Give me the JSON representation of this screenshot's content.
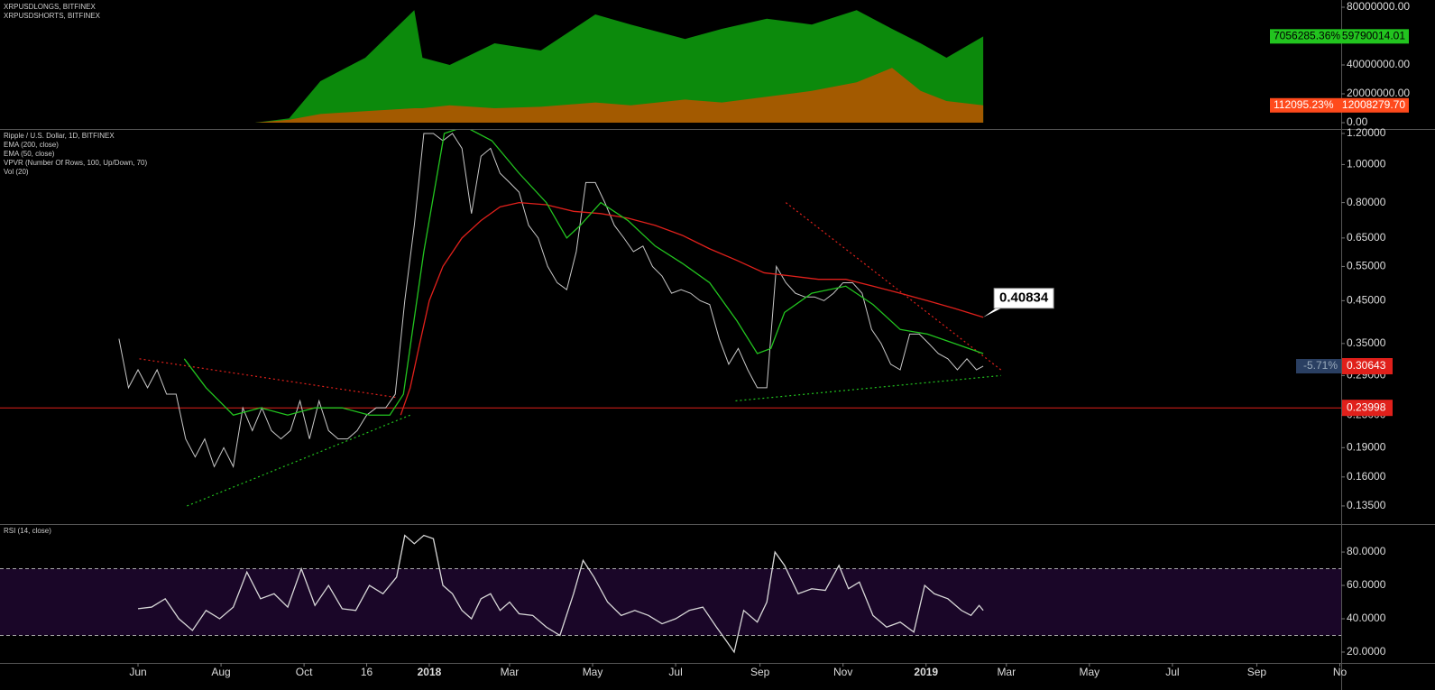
{
  "chart_data": [
    {
      "type": "area",
      "x": [
        86,
        111,
        134,
        167,
        203,
        209,
        229,
        262,
        296,
        336,
        362,
        402,
        429,
        462,
        495,
        528,
        554,
        575,
        594,
        621
      ],
      "series": [
        {
          "name": "XRPUSDLONGS, BITFINEX",
          "color": "#0c8a0c",
          "badge_color": "#22c41f",
          "values": [
            0,
            3000000,
            28750000,
            45000000,
            78000000,
            45000000,
            40000000,
            55000000,
            50000000,
            75000000,
            68000000,
            58000000,
            65000000,
            72000000,
            68000000,
            78000000,
            65000000,
            55000000,
            45000000,
            59790014.01
          ],
          "last_label": "59790014.01",
          "change_label": "7056285.36%"
        },
        {
          "name": "XRPUSDSHORTS, BITFINEX",
          "color": "#a35a00",
          "badge_color": "#ff4a1c",
          "values": [
            0,
            2000000,
            6000000,
            8000000,
            10000000,
            10000000,
            12000000,
            10000000,
            11000000,
            14000000,
            12000000,
            16000000,
            14000000,
            18000000,
            22000000,
            28000000,
            38000000,
            22000000,
            15000000,
            12008279.7
          ],
          "last_label": "12008279.70",
          "change_label": "112095.23%"
        }
      ],
      "ylim": [
        -4375000,
        85000000
      ],
      "yticks": [
        {
          "value": 0,
          "label": "0.00"
        },
        {
          "value": 20000000,
          "label": "20000000.00"
        },
        {
          "value": 40000000,
          "label": "40000000.00"
        },
        {
          "value": 80000000,
          "label": "80000000.00"
        }
      ]
    },
    {
      "type": "line",
      "log_scale": true,
      "series": [
        {
          "name": "Ripple / U.S. Dollar, 1D, BITFINEX",
          "color": "#c8c8c8",
          "badge_color": "#e0201b",
          "change_label": "-5.71%",
          "x": [
            -14,
            -7,
            0,
            7,
            14,
            21,
            28,
            35,
            42,
            49,
            56,
            63,
            70,
            77,
            84,
            91,
            98,
            105,
            112,
            119,
            126,
            133,
            140,
            147,
            154,
            161,
            168,
            175,
            182,
            189,
            196,
            203,
            210,
            217,
            224,
            231,
            238,
            245,
            252,
            259,
            266,
            273,
            280,
            287,
            294,
            301,
            308,
            315,
            322,
            329,
            336,
            343,
            350,
            357,
            364,
            371,
            378,
            385,
            392,
            399,
            406,
            413,
            420,
            427,
            434,
            441,
            448,
            455,
            462,
            469,
            476,
            483,
            490,
            497,
            504,
            511,
            518,
            525,
            532,
            539,
            546,
            553,
            560,
            567,
            574,
            581,
            588,
            595,
            602,
            609,
            616,
            621
          ],
          "values": [
            0.36,
            0.27,
            0.3,
            0.27,
            0.3,
            0.26,
            0.26,
            0.2,
            0.18,
            0.2,
            0.17,
            0.19,
            0.17,
            0.24,
            0.21,
            0.24,
            0.21,
            0.2,
            0.21,
            0.25,
            0.2,
            0.25,
            0.21,
            0.2,
            0.2,
            0.21,
            0.23,
            0.24,
            0.24,
            0.26,
            0.45,
            0.7,
            1.2,
            1.2,
            1.15,
            1.2,
            1.1,
            0.75,
            1.05,
            1.1,
            0.95,
            0.9,
            0.85,
            0.7,
            0.65,
            0.55,
            0.5,
            0.48,
            0.6,
            0.9,
            0.9,
            0.8,
            0.7,
            0.65,
            0.6,
            0.62,
            0.55,
            0.52,
            0.47,
            0.48,
            0.47,
            0.45,
            0.44,
            0.36,
            0.31,
            0.34,
            0.3,
            0.27,
            0.27,
            0.55,
            0.5,
            0.47,
            0.46,
            0.46,
            0.45,
            0.47,
            0.5,
            0.5,
            0.47,
            0.38,
            0.35,
            0.31,
            0.3,
            0.37,
            0.37,
            0.35,
            0.33,
            0.32,
            0.3,
            0.32,
            0.3,
            0.30643
          ]
        },
        {
          "name": "EMA (200, close)",
          "color": "#e0201b",
          "callout": true,
          "x": [
            193,
            200,
            207,
            214,
            224,
            238,
            252,
            266,
            280,
            300,
            320,
            340,
            360,
            380,
            400,
            420,
            440,
            460,
            480,
            500,
            520,
            540,
            560,
            580,
            600,
            621
          ],
          "values": [
            0.23,
            0.27,
            0.35,
            0.45,
            0.55,
            0.65,
            0.72,
            0.78,
            0.8,
            0.79,
            0.76,
            0.75,
            0.73,
            0.7,
            0.66,
            0.61,
            0.57,
            0.53,
            0.52,
            0.51,
            0.51,
            0.49,
            0.47,
            0.45,
            0.43,
            0.40834
          ]
        },
        {
          "name": "EMA (50, close)",
          "color": "#22c41f",
          "x": [
            34,
            50,
            70,
            90,
            110,
            130,
            150,
            170,
            185,
            195,
            210,
            225,
            240,
            260,
            280,
            300,
            315,
            325,
            340,
            360,
            380,
            400,
            420,
            440,
            455,
            465,
            475,
            495,
            520,
            540,
            560,
            580,
            600,
            621
          ],
          "values": [
            0.32,
            0.27,
            0.23,
            0.24,
            0.23,
            0.24,
            0.24,
            0.23,
            0.23,
            0.26,
            0.6,
            1.2,
            1.25,
            1.15,
            0.95,
            0.8,
            0.65,
            0.7,
            0.8,
            0.72,
            0.62,
            0.56,
            0.5,
            0.4,
            0.33,
            0.34,
            0.42,
            0.47,
            0.49,
            0.44,
            0.38,
            0.37,
            0.35,
            0.33
          ]
        }
      ],
      "indicators": [
        "VPVR (Number Of Rows, 100, Up/Down, 70)",
        "Vol (20)"
      ],
      "hline": {
        "value": 0.23998,
        "color": "#e0201b"
      },
      "trendlines": [
        {
          "x": [
            1,
            190
          ],
          "y": [
            0.32,
            0.255
          ],
          "color": "#e0201b"
        },
        {
          "x": [
            36,
            200
          ],
          "y": [
            0.135,
            0.23
          ],
          "color": "#22c41f"
        },
        {
          "x": [
            476,
            634
          ],
          "y": [
            0.8,
            0.3
          ],
          "color": "#e0201b"
        },
        {
          "x": [
            439,
            634
          ],
          "y": [
            0.25,
            0.29
          ],
          "color": "#22c41f"
        }
      ],
      "ylim": [
        0.1214,
        1.232
      ],
      "yticks": [
        {
          "value": 1.2,
          "label": "1.20000"
        },
        {
          "value": 1,
          "label": "1.00000"
        },
        {
          "value": 0.8,
          "label": "0.80000"
        },
        {
          "value": 0.65,
          "label": "0.65000"
        },
        {
          "value": 0.55,
          "label": "0.55000"
        },
        {
          "value": 0.45,
          "label": "0.45000"
        },
        {
          "value": 0.35,
          "label": "0.35000"
        },
        {
          "value": 0.29,
          "label": "0.29000"
        },
        {
          "value": 0.23,
          "label": "0.23000"
        },
        {
          "value": 0.19,
          "label": "0.19000"
        },
        {
          "value": 0.16,
          "label": "0.16000"
        },
        {
          "value": 0.135,
          "label": "0.13500"
        }
      ]
    },
    {
      "type": "line",
      "title": "RSI (14, close)",
      "band": [
        30,
        70
      ],
      "series": [
        {
          "color": "#d8d8d8",
          "x": [
            0,
            10,
            20,
            30,
            40,
            50,
            60,
            70,
            80,
            90,
            100,
            110,
            120,
            130,
            140,
            150,
            160,
            170,
            180,
            190,
            196,
            203,
            210,
            217,
            224,
            231,
            238,
            245,
            252,
            259,
            266,
            273,
            280,
            290,
            300,
            310,
            320,
            327,
            335,
            345,
            355,
            365,
            375,
            385,
            395,
            405,
            415,
            425,
            432,
            438,
            445,
            455,
            462,
            468,
            475,
            485,
            495,
            505,
            515,
            522,
            530,
            540,
            550,
            560,
            570,
            578,
            585,
            595,
            605,
            612,
            618,
            621
          ],
          "values": [
            46,
            47,
            52,
            40,
            33,
            45,
            40,
            47,
            68,
            52,
            55,
            47,
            70,
            48,
            60,
            46,
            45,
            60,
            55,
            65,
            90,
            85,
            90,
            88,
            60,
            55,
            45,
            40,
            52,
            55,
            45,
            50,
            43,
            42,
            35,
            30,
            55,
            75,
            65,
            50,
            42,
            45,
            42,
            37,
            40,
            45,
            47,
            35,
            27,
            20,
            45,
            38,
            50,
            80,
            72,
            55,
            58,
            57,
            72,
            58,
            62,
            42,
            35,
            38,
            32,
            60,
            55,
            52,
            45,
            42,
            48,
            45
          ]
        }
      ],
      "ylim": [
        13.5,
        96.8
      ],
      "yticks": [
        {
          "value": 80,
          "label": "80.0000"
        },
        {
          "value": 60,
          "label": "60.0000"
        },
        {
          "value": 40,
          "label": "40.0000"
        },
        {
          "value": 20,
          "label": "20.0000"
        }
      ],
      "xlim": [
        -101.4,
        884
      ],
      "xticks": [
        {
          "value": 0,
          "label": "Jun"
        },
        {
          "value": 61,
          "label": "Aug"
        },
        {
          "value": 122,
          "label": "Oct"
        },
        {
          "value": 168,
          "label": "16"
        },
        {
          "value": 214,
          "label": "2018"
        },
        {
          "value": 273,
          "label": "Mar"
        },
        {
          "value": 334,
          "label": "May"
        },
        {
          "value": 395,
          "label": "Jul"
        },
        {
          "value": 457,
          "label": "Sep"
        },
        {
          "value": 518,
          "label": "Nov"
        },
        {
          "value": 579,
          "label": "2019"
        },
        {
          "value": 638,
          "label": "Mar"
        },
        {
          "value": 699,
          "label": "May"
        },
        {
          "value": 760,
          "label": "Jul"
        },
        {
          "value": 822,
          "label": "Sep"
        },
        {
          "value": 883,
          "label": "No"
        }
      ]
    }
  ]
}
